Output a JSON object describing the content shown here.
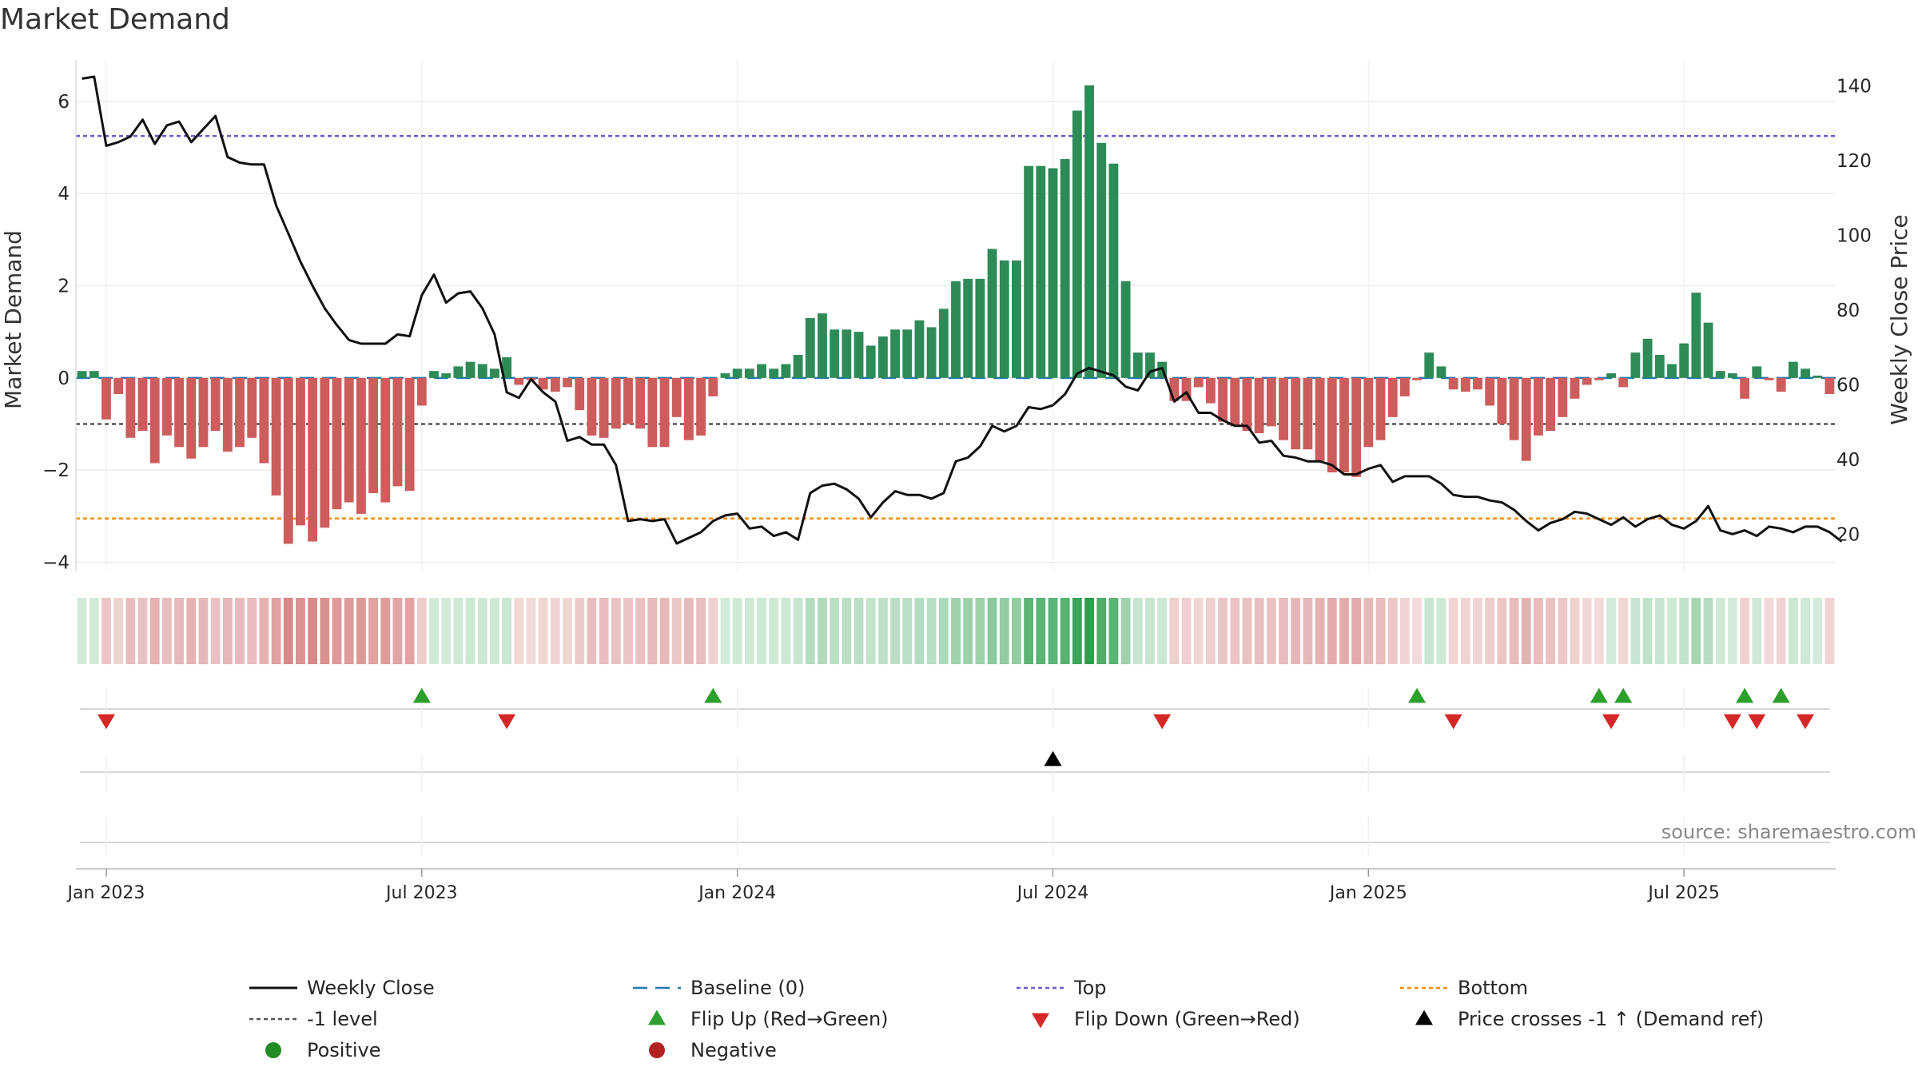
{
  "chart_data": {
    "type": "bar+line",
    "title": "Market Demand",
    "ylabel_left": "Market Demand",
    "ylabel_right": "Weekly Close Price",
    "ylim_left": [
      -4.2,
      6.9
    ],
    "ylim_right": [
      10,
      147
    ],
    "yticks_left": [
      {
        "value": 6,
        "label": "6"
      },
      {
        "value": 4,
        "label": "4"
      },
      {
        "value": 2,
        "label": "2"
      },
      {
        "value": 0,
        "label": "0"
      },
      {
        "value": -2,
        "label": "−2"
      },
      {
        "value": -4,
        "label": "−4"
      }
    ],
    "yticks_right": [
      {
        "value": 140,
        "label": "140"
      },
      {
        "value": 120,
        "label": "120"
      },
      {
        "value": 100,
        "label": "100"
      },
      {
        "value": 80,
        "label": "80"
      },
      {
        "value": 60,
        "label": "60"
      },
      {
        "value": 40,
        "label": "40"
      },
      {
        "value": 20,
        "label": "20"
      }
    ],
    "xticks": [
      {
        "week": 2,
        "label": "Jan 2023"
      },
      {
        "week": 28,
        "label": "Jul 2023"
      },
      {
        "week": 54,
        "label": "Jan 2024"
      },
      {
        "week": 80,
        "label": "Jul 2024"
      },
      {
        "week": 106,
        "label": "Jan 2025"
      },
      {
        "week": 132,
        "label": "Jul 2025"
      }
    ],
    "demand": [
      0.15,
      0.15,
      -0.9,
      -0.35,
      -1.3,
      -1.15,
      -1.85,
      -1.25,
      -1.5,
      -1.75,
      -1.5,
      -1.15,
      -1.6,
      -1.5,
      -1.3,
      -1.85,
      -2.55,
      -3.6,
      -3.2,
      -3.55,
      -3.25,
      -2.85,
      -2.7,
      -2.95,
      -2.5,
      -2.7,
      -2.35,
      -2.45,
      -0.6,
      0.15,
      0.1,
      0.25,
      0.35,
      0.3,
      0.2,
      0.45,
      -0.15,
      -0.05,
      -0.25,
      -0.3,
      -0.2,
      -0.7,
      -1.25,
      -1.3,
      -1.1,
      -1.0,
      -1.1,
      -1.5,
      -1.5,
      -0.85,
      -1.35,
      -1.25,
      -0.4,
      0.1,
      0.2,
      0.2,
      0.3,
      0.2,
      0.3,
      0.5,
      1.3,
      1.4,
      1.05,
      1.05,
      1.0,
      0.7,
      0.9,
      1.05,
      1.05,
      1.25,
      1.1,
      1.5,
      2.1,
      2.15,
      2.15,
      2.8,
      2.55,
      2.55,
      4.6,
      4.6,
      4.55,
      4.75,
      5.8,
      6.35,
      5.1,
      4.65,
      2.1,
      0.55,
      0.55,
      0.35,
      -0.5,
      -0.5,
      -0.2,
      -0.55,
      -0.95,
      -1.05,
      -1.15,
      -1.2,
      -1.05,
      -1.35,
      -1.55,
      -1.55,
      -1.8,
      -2.05,
      -2.05,
      -2.15,
      -1.5,
      -1.35,
      -0.85,
      -0.4,
      -0.05,
      0.55,
      0.25,
      -0.25,
      -0.3,
      -0.25,
      -0.6,
      -1.0,
      -1.35,
      -1.8,
      -1.25,
      -1.15,
      -0.85,
      -0.45,
      -0.15,
      -0.05,
      0.1,
      -0.2,
      0.55,
      0.85,
      0.5,
      0.3,
      0.75,
      1.85,
      1.2,
      0.15,
      0.1,
      -0.45,
      0.25,
      -0.05,
      -0.3,
      0.35,
      0.2,
      0.05,
      -0.35
    ],
    "close": [
      142,
      142.5,
      124,
      125,
      126.5,
      131,
      124.5,
      129.5,
      130.5,
      125,
      128.5,
      132,
      121,
      119.5,
      119,
      119,
      108,
      100.5,
      93,
      86.5,
      80.5,
      76,
      72,
      71,
      71,
      71,
      73.5,
      73,
      84,
      89.5,
      82,
      84.5,
      85,
      80.5,
      73.5,
      58,
      56.5,
      61.5,
      58,
      55.5,
      45,
      46,
      44,
      44,
      38.5,
      23.5,
      24,
      23.5,
      24,
      17.5,
      19,
      20.5,
      23.5,
      25,
      25.5,
      21.5,
      22,
      19.5,
      20.5,
      18.5,
      31,
      33,
      33.5,
      32,
      29.5,
      24.5,
      28.5,
      31.5,
      30.5,
      30.5,
      29.5,
      31,
      39.5,
      40.5,
      43.5,
      49,
      47.5,
      49,
      54,
      53.5,
      54.5,
      57.5,
      63,
      64.5,
      63.5,
      62.5,
      59.5,
      58.5,
      63.5,
      64.5,
      55.5,
      58,
      52.5,
      52.5,
      50.5,
      49,
      49,
      44.5,
      45,
      41,
      40.5,
      39.5,
      39.5,
      38.5,
      36,
      36,
      37.5,
      38.5,
      34,
      35.5,
      35.5,
      35.5,
      33.5,
      30.5,
      30,
      30,
      29,
      28.5,
      26.5,
      23.5,
      21,
      23,
      24,
      26,
      25.5,
      24,
      22.5,
      24.5,
      22,
      24,
      25,
      22.5,
      21.5,
      23.5,
      27.5,
      21,
      20,
      21,
      19.5,
      22,
      21.5,
      20.5,
      22,
      22,
      20.5,
      18
    ],
    "top_level": 5.25,
    "bottom_level": -3.05,
    "minus_one_level": -1.0,
    "baseline": 0,
    "flip_up_weeks": [
      28,
      52,
      110,
      125,
      127,
      137,
      140
    ],
    "flip_down_weeks": [
      2,
      35,
      89,
      113,
      126,
      136,
      138,
      142
    ],
    "price_cross_weeks": [
      80
    ],
    "source": "source: sharemaestro.com",
    "legend": [
      {
        "key": "close",
        "label": "Weekly Close"
      },
      {
        "key": "baseline",
        "label": "Baseline (0)"
      },
      {
        "key": "top",
        "label": "Top"
      },
      {
        "key": "bottom",
        "label": "Bottom"
      },
      {
        "key": "minus1",
        "label": "-1 level"
      },
      {
        "key": "flipup",
        "label": "Flip Up (Red→Green)"
      },
      {
        "key": "flipdown",
        "label": "Flip Down (Green→Red)"
      },
      {
        "key": "cross",
        "label": "Price crosses -1 ↑ (Demand ref)"
      },
      {
        "key": "positive",
        "label": "Positive"
      },
      {
        "key": "negative",
        "label": "Negative"
      }
    ],
    "colors": {
      "positive": "#2e8b57",
      "negative": "#cd5c5c",
      "close": "#111111",
      "baseline": "#1f77b4",
      "top": "#6a5acd",
      "bottom": "#ff8c00",
      "minus1": "#555555",
      "flipup": "#2ca02c",
      "flipdown": "#d62728",
      "cross": "#000000",
      "legend_positive": "#228b22",
      "legend_negative": "#b22222",
      "heat_positive": "#2e9e4f",
      "heat_negative": "#c24a4a"
    }
  }
}
